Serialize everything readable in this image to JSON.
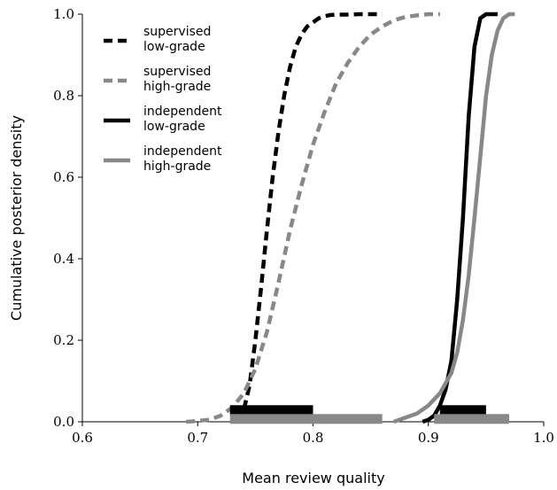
{
  "chart_data": {
    "type": "line",
    "xlabel": "Mean review quality",
    "ylabel": "Cumulative posterior density",
    "xlim": [
      0.6,
      1.0
    ],
    "ylim": [
      0.0,
      1.0
    ],
    "xticks": [
      0.6,
      0.7,
      0.8,
      0.9,
      1.0
    ],
    "xtick_labels": [
      "0.6",
      "0.7",
      "0.8",
      "0.9",
      "1.0"
    ],
    "yticks": [
      0.0,
      0.2,
      0.4,
      0.6,
      0.8,
      1.0
    ],
    "ytick_labels": [
      "0.0",
      "0.2",
      "0.4",
      "0.6",
      "0.8",
      "1.0"
    ],
    "grid": false,
    "legend_position": "top-left",
    "series": [
      {
        "name_lines": [
          "supervised",
          "low-grade"
        ],
        "color": "#000000",
        "dash": "dashed",
        "x": [
          0.735,
          0.74,
          0.745,
          0.75,
          0.755,
          0.76,
          0.765,
          0.77,
          0.775,
          0.78,
          0.785,
          0.79,
          0.795,
          0.8,
          0.805,
          0.81,
          0.815,
          0.82,
          0.825,
          0.83,
          0.84,
          0.85,
          0.86
        ],
        "y": [
          0.0,
          0.03,
          0.09,
          0.2,
          0.33,
          0.47,
          0.6,
          0.71,
          0.8,
          0.87,
          0.92,
          0.95,
          0.97,
          0.98,
          0.99,
          0.995,
          0.998,
          0.999,
          0.999,
          0.999,
          1.0,
          1.0,
          1.0
        ],
        "hpd_interval": [
          0.728,
          0.8
        ]
      },
      {
        "name_lines": [
          "supervised",
          "high-grade"
        ],
        "color": "#888888",
        "dash": "dashed",
        "x": [
          0.69,
          0.7,
          0.71,
          0.72,
          0.73,
          0.74,
          0.75,
          0.76,
          0.77,
          0.78,
          0.79,
          0.8,
          0.81,
          0.82,
          0.83,
          0.84,
          0.85,
          0.86,
          0.87,
          0.88,
          0.89,
          0.9,
          0.91
        ],
        "y": [
          0.0,
          0.002,
          0.005,
          0.015,
          0.035,
          0.07,
          0.13,
          0.22,
          0.34,
          0.47,
          0.58,
          0.68,
          0.76,
          0.83,
          0.88,
          0.92,
          0.95,
          0.97,
          0.985,
          0.993,
          0.997,
          1.0,
          1.0
        ],
        "hpd_interval": [
          0.728,
          0.86
        ]
      },
      {
        "name_lines": [
          "independent",
          "low-grade"
        ],
        "color": "#000000",
        "dash": "solid",
        "x": [
          0.895,
          0.9,
          0.905,
          0.91,
          0.915,
          0.92,
          0.925,
          0.93,
          0.935,
          0.94,
          0.945,
          0.95,
          0.955,
          0.96
        ],
        "y": [
          0.0,
          0.005,
          0.015,
          0.04,
          0.08,
          0.15,
          0.3,
          0.5,
          0.75,
          0.92,
          0.99,
          1.0,
          1.0,
          1.0
        ],
        "hpd_interval": [
          0.91,
          0.95
        ]
      },
      {
        "name_lines": [
          "independent",
          "high-grade"
        ],
        "color": "#888888",
        "dash": "solid",
        "x": [
          0.87,
          0.88,
          0.89,
          0.9,
          0.91,
          0.92,
          0.925,
          0.93,
          0.935,
          0.94,
          0.945,
          0.95,
          0.955,
          0.96,
          0.965,
          0.97,
          0.975
        ],
        "y": [
          0.0,
          0.01,
          0.02,
          0.04,
          0.07,
          0.12,
          0.17,
          0.25,
          0.36,
          0.5,
          0.65,
          0.8,
          0.9,
          0.96,
          0.99,
          1.0,
          1.0
        ],
        "hpd_interval": [
          0.905,
          0.97
        ]
      }
    ]
  }
}
